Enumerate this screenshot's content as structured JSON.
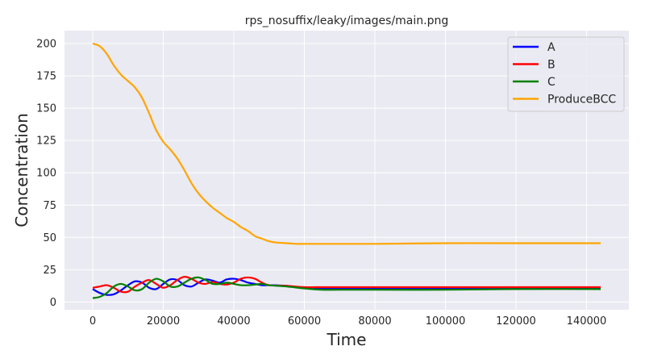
{
  "chart_data": {
    "type": "line",
    "title": "rps_nosuffix/leaky/images/main.png",
    "xlabel": "Time",
    "ylabel": "Concentration",
    "xlim": [
      -8000,
      152000
    ],
    "ylim": [
      -6,
      210
    ],
    "x_ticks": [
      0,
      20000,
      40000,
      60000,
      80000,
      100000,
      120000,
      140000
    ],
    "y_ticks": [
      0,
      25,
      50,
      75,
      100,
      125,
      150,
      175,
      200
    ],
    "grid": true,
    "legend_position": "top-right",
    "series": [
      {
        "name": "A",
        "color": "#0000ff",
        "x": [
          0,
          2000,
          4000,
          6000,
          8000,
          10000,
          12000,
          14000,
          16000,
          18000,
          20000,
          22000,
          24000,
          26000,
          28000,
          30000,
          32000,
          34000,
          36000,
          38000,
          40000,
          42000,
          44000,
          46000,
          48000,
          50000,
          55000,
          60000,
          65000,
          70000,
          80000,
          100000,
          120000,
          144000
        ],
        "y": [
          10,
          7,
          5.5,
          6,
          9,
          13,
          16,
          15,
          11,
          10,
          14,
          17.5,
          17,
          13,
          12,
          15,
          17.5,
          16.5,
          15,
          17.5,
          18,
          17,
          15,
          14,
          13,
          13,
          12.5,
          11,
          10.5,
          10.5,
          10.5,
          10.5,
          10.5,
          10.5
        ]
      },
      {
        "name": "B",
        "color": "#ff0000",
        "x": [
          0,
          2000,
          4000,
          6000,
          8000,
          10000,
          12000,
          14000,
          16000,
          18000,
          20000,
          22000,
          24000,
          26000,
          28000,
          30000,
          32000,
          34000,
          36000,
          38000,
          40000,
          42000,
          44000,
          46000,
          48000,
          50000,
          55000,
          60000,
          65000,
          70000,
          80000,
          100000,
          120000,
          144000
        ],
        "y": [
          11,
          12,
          13,
          11,
          8,
          8,
          12,
          15,
          17,
          14,
          11,
          13,
          17,
          19.5,
          18,
          15,
          14,
          15.5,
          14,
          13.5,
          15,
          18,
          19,
          18,
          15,
          13,
          12.5,
          11.5,
          11.5,
          11.5,
          11.5,
          11.5,
          11.5,
          11.5
        ]
      },
      {
        "name": "C",
        "color": "#008000",
        "x": [
          0,
          2000,
          4000,
          6000,
          8000,
          10000,
          12000,
          14000,
          16000,
          18000,
          20000,
          22000,
          24000,
          26000,
          28000,
          30000,
          32000,
          34000,
          36000,
          38000,
          40000,
          42000,
          44000,
          46000,
          48000,
          50000,
          55000,
          60000,
          65000,
          70000,
          80000,
          100000,
          120000,
          144000
        ],
        "y": [
          3,
          4,
          7,
          12,
          14,
          12,
          9,
          10,
          15,
          18,
          16,
          12,
          12,
          15,
          18,
          19,
          17,
          14,
          14,
          15,
          14,
          13,
          13,
          13.5,
          14,
          13,
          12,
          10.5,
          9.5,
          9.5,
          9.5,
          9.5,
          10,
          10
        ]
      },
      {
        "name": "ProduceBCC",
        "color": "#ffa500",
        "x": [
          0,
          2000,
          4000,
          6000,
          8000,
          10000,
          12000,
          14000,
          16000,
          18000,
          20000,
          22000,
          24000,
          26000,
          28000,
          30000,
          32000,
          34000,
          36000,
          38000,
          40000,
          42000,
          44000,
          46000,
          48000,
          50000,
          52000,
          55000,
          58000,
          60000,
          65000,
          70000,
          80000,
          100000,
          120000,
          144000
        ],
        "y": [
          200,
          198,
          192,
          183,
          176,
          171,
          166,
          158,
          146,
          133,
          124,
          118,
          111,
          102,
          92,
          84,
          78,
          73,
          69,
          65,
          62,
          58,
          55,
          51,
          49,
          47,
          46,
          45.5,
          45,
          45,
          45,
          45,
          45,
          45.5,
          45.5,
          45.5
        ]
      }
    ]
  }
}
